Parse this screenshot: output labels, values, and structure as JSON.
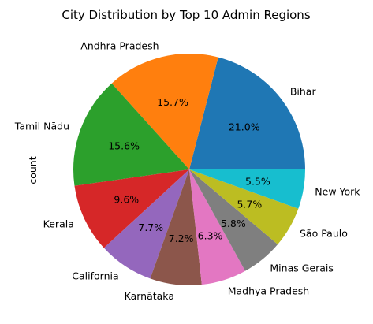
{
  "chart_data": {
    "type": "pie",
    "title": "City Distribution by Top 10 Admin Regions",
    "ylabel": "count",
    "categories": [
      "Bihār",
      "Andhra Pradesh",
      "Tamil Nādu",
      "Kerala",
      "California",
      "Karnātaka",
      "Madhya Pradesh",
      "Minas Gerais",
      "São Paulo",
      "New York"
    ],
    "values": [
      21.0,
      15.7,
      15.6,
      9.6,
      7.7,
      7.2,
      6.3,
      5.8,
      5.7,
      5.5
    ],
    "percent_labels": [
      "21.0%",
      "15.7%",
      "15.6%",
      "9.6%",
      "7.7%",
      "7.2%",
      "6.3%",
      "5.8%",
      "5.7%",
      "5.5%"
    ],
    "colors": [
      "#1f77b4",
      "#ff7f0e",
      "#2ca02c",
      "#d62728",
      "#9467bd",
      "#8c564b",
      "#e377c2",
      "#7f7f7f",
      "#bcbd22",
      "#17becf"
    ],
    "start_angle_deg": 0,
    "direction": "counterclockwise"
  }
}
